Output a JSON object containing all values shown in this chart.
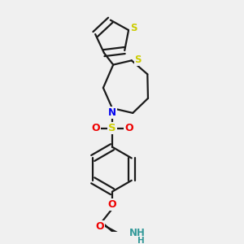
{
  "bg_color": "#f0f0f0",
  "bond_color": "#1a1a1a",
  "S_color": "#cccc00",
  "N_color": "#0000ee",
  "O_color": "#ee0000",
  "NH_color": "#339999",
  "lw": 1.6,
  "dbl_off": 0.012,
  "fig_w": 3.0,
  "fig_h": 3.0,
  "dpi": 100,
  "xlim": [
    0.05,
    0.75
  ],
  "ylim": [
    0.02,
    1.0
  ]
}
